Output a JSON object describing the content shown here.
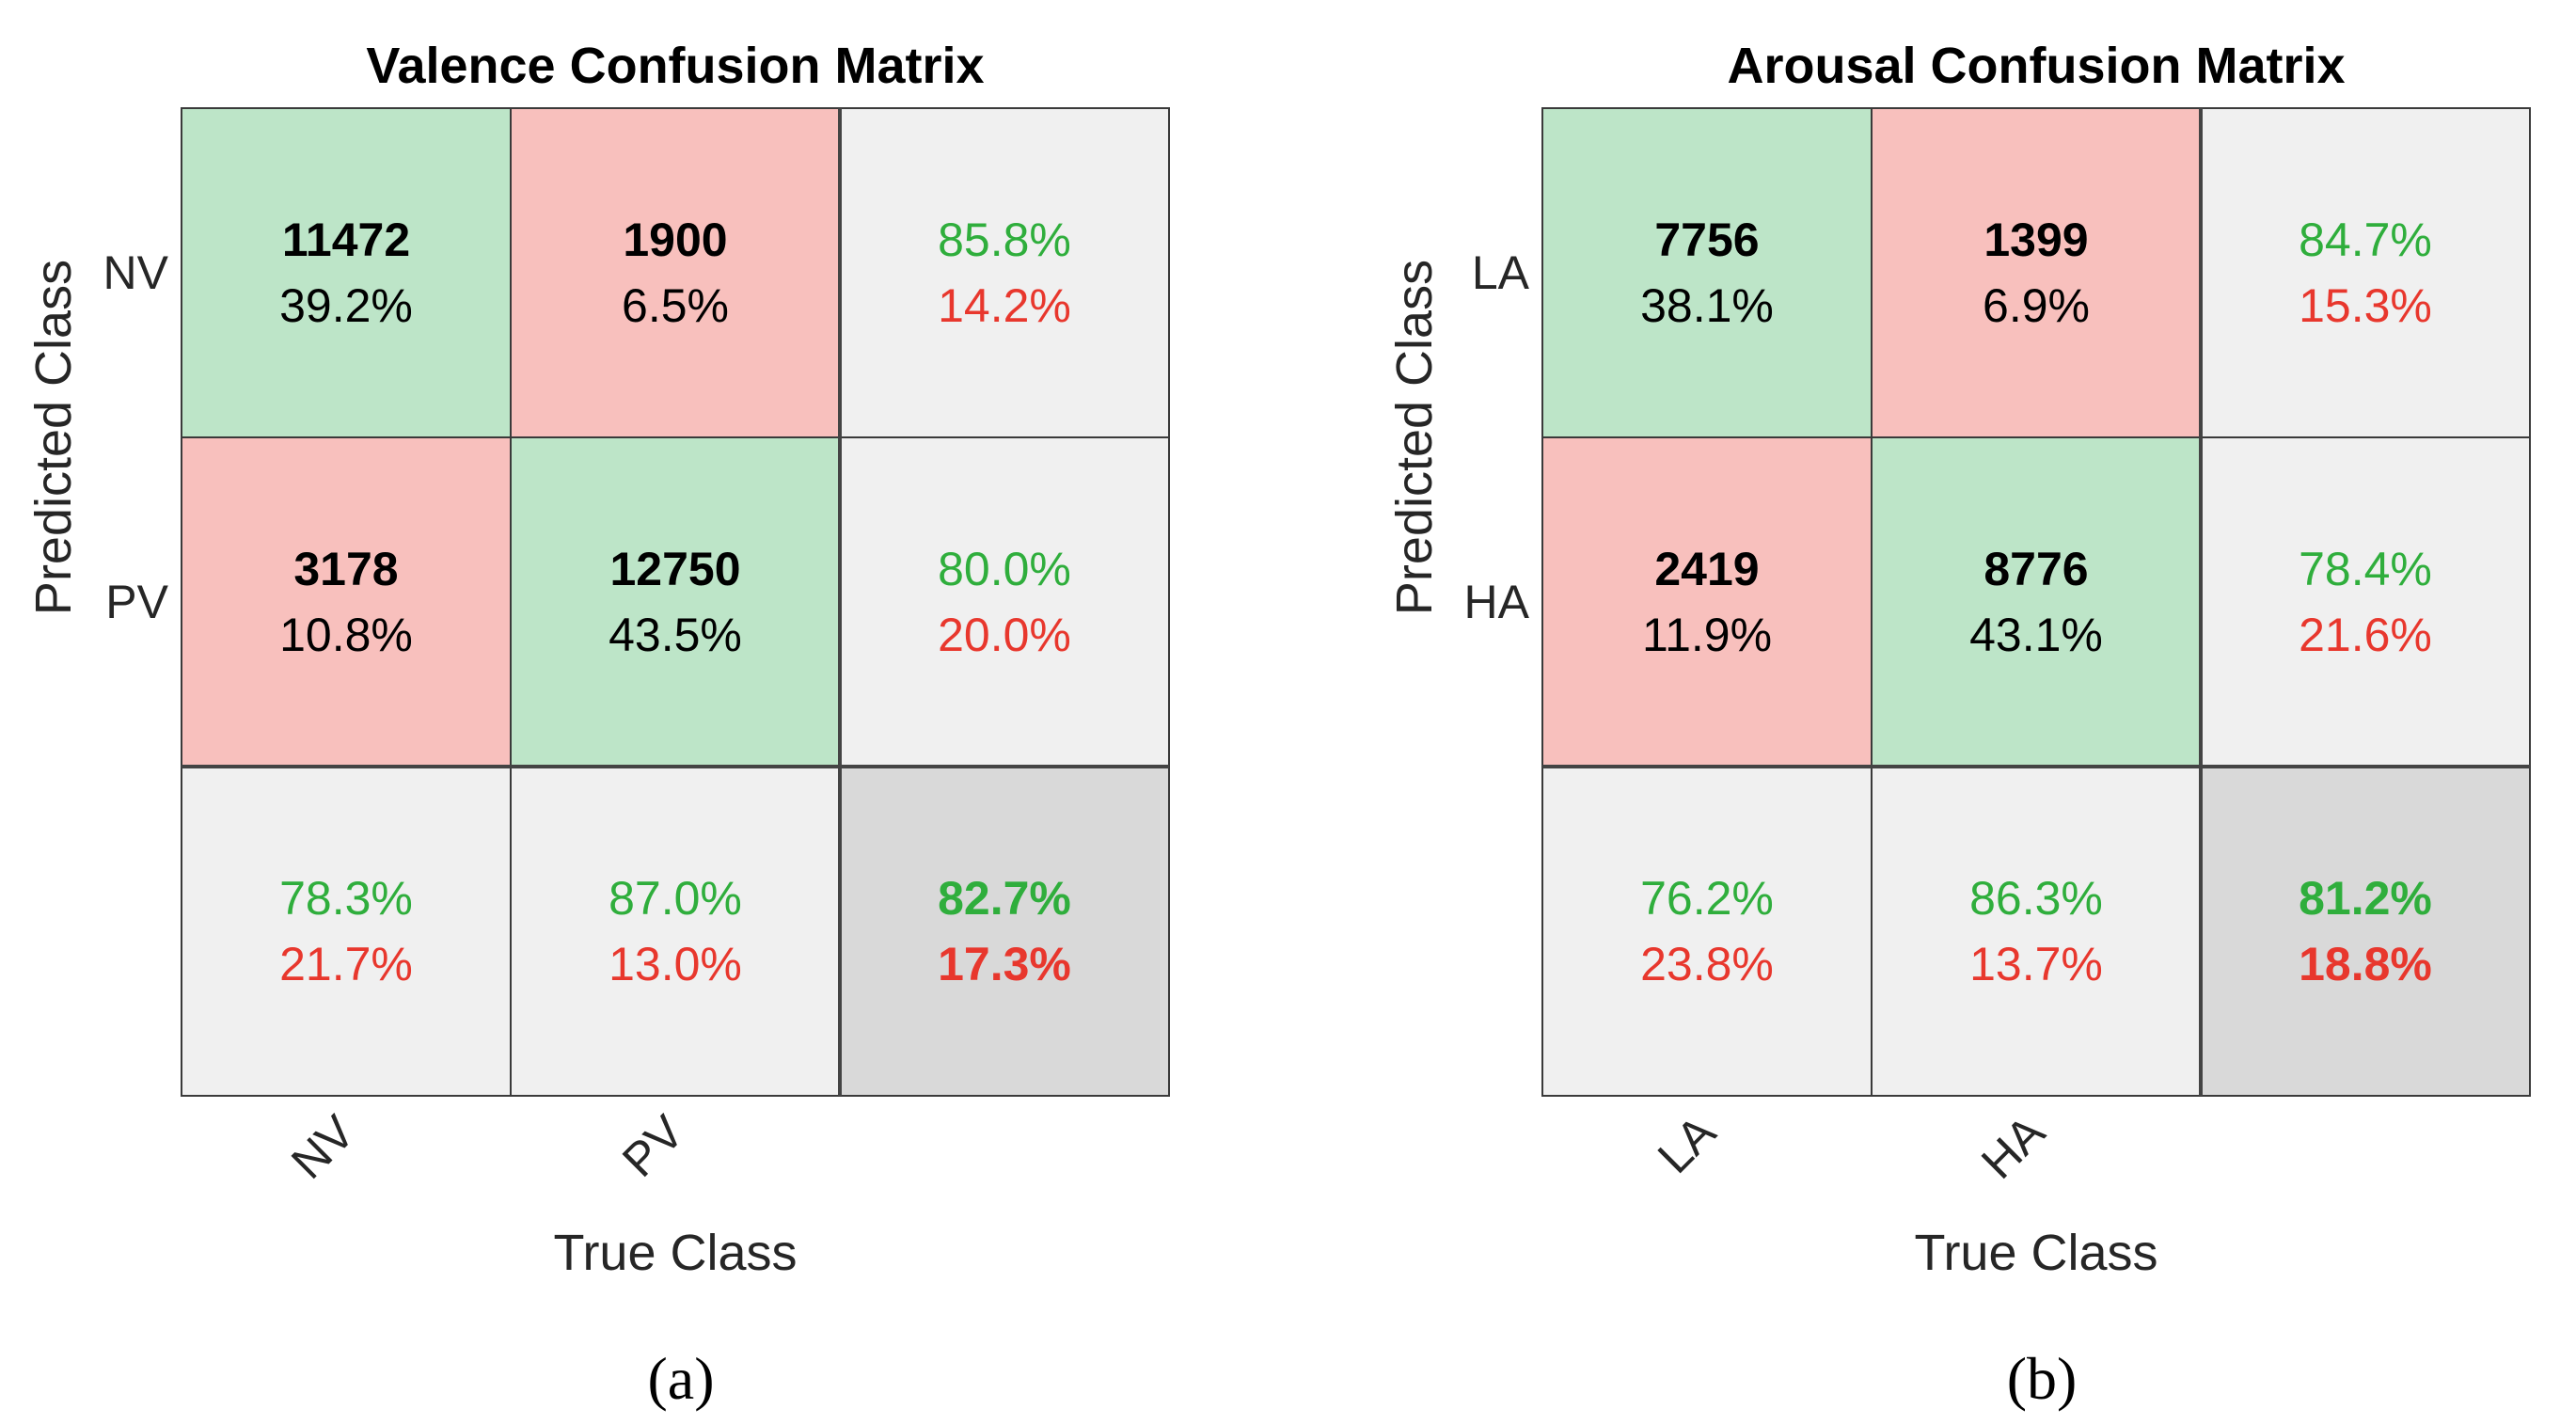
{
  "chart_data": [
    {
      "type": "heatmap",
      "title": "Valence Confusion Matrix",
      "xlabel": "True Class",
      "ylabel": "Predicted Class",
      "classes": [
        "NV",
        "PV"
      ],
      "counts": [
        [
          11472,
          1900
        ],
        [
          3178,
          12750
        ]
      ],
      "cell_text": [
        [
          {
            "count": "11472",
            "pct": "39.2%"
          },
          {
            "count": "1900",
            "pct": "6.5%"
          }
        ],
        [
          {
            "count": "3178",
            "pct": "10.8%"
          },
          {
            "count": "12750",
            "pct": "43.5%"
          }
        ]
      ],
      "row_summary": [
        {
          "correct": "85.8%",
          "error": "14.2%"
        },
        {
          "correct": "80.0%",
          "error": "20.0%"
        }
      ],
      "col_summary": [
        {
          "correct": "78.3%",
          "error": "21.7%"
        },
        {
          "correct": "87.0%",
          "error": "13.0%"
        }
      ],
      "overall": {
        "correct": "82.7%",
        "error": "17.3%"
      },
      "caption": "(a)"
    },
    {
      "type": "heatmap",
      "title": "Arousal Confusion Matrix",
      "xlabel": "True Class",
      "ylabel": "Predicted Class",
      "classes": [
        "LA",
        "HA"
      ],
      "counts": [
        [
          7756,
          1399
        ],
        [
          2419,
          8776
        ]
      ],
      "cell_text": [
        [
          {
            "count": "7756",
            "pct": "38.1%"
          },
          {
            "count": "1399",
            "pct": "6.9%"
          }
        ],
        [
          {
            "count": "2419",
            "pct": "11.9%"
          },
          {
            "count": "8776",
            "pct": "43.1%"
          }
        ]
      ],
      "row_summary": [
        {
          "correct": "84.7%",
          "error": "15.3%"
        },
        {
          "correct": "78.4%",
          "error": "21.6%"
        }
      ],
      "col_summary": [
        {
          "correct": "76.2%",
          "error": "23.8%"
        },
        {
          "correct": "86.3%",
          "error": "13.7%"
        }
      ],
      "overall": {
        "correct": "81.2%",
        "error": "18.8%"
      },
      "caption": "(b)"
    }
  ],
  "colors": {
    "correct_cell": "#bde5c8",
    "error_cell": "#f8c0bd",
    "summary_cell": "#f0f0f0",
    "overall_cell": "#d9d9d9",
    "correct_text": "#2fae3c",
    "error_text": "#e8372d",
    "grid_line": "#3a3a3a"
  }
}
